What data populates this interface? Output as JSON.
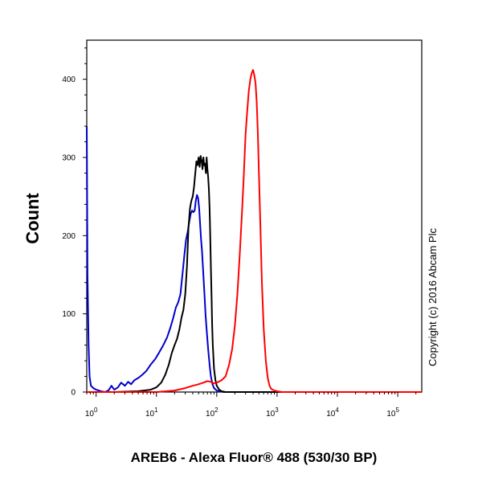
{
  "chart_data": {
    "type": "line",
    "title": "",
    "xlabel": "AREB6 - Alexa Fluor® 488 (530/30 BP)",
    "ylabel": "Count",
    "x_scale": "log",
    "xlim": [
      0.7,
      250000
    ],
    "ylim": [
      0,
      450
    ],
    "grid": false,
    "legend": "none",
    "annotation": "Copyright (c) 2016 Abcam Plc",
    "x_ticks": [
      {
        "value": 1,
        "base": "10",
        "exp": "0"
      },
      {
        "value": 10,
        "base": "10",
        "exp": "1"
      },
      {
        "value": 100,
        "base": "10",
        "exp": "2"
      },
      {
        "value": 1000,
        "base": "10",
        "exp": "3"
      },
      {
        "value": 10000,
        "base": "10",
        "exp": "4"
      },
      {
        "value": 100000,
        "base": "10",
        "exp": "5"
      }
    ],
    "y_ticks": [
      0,
      100,
      200,
      300,
      400
    ],
    "series": [
      {
        "color": "#0000cc",
        "x": [
          0.7,
          0.72,
          0.75,
          0.78,
          0.82,
          0.9,
          1.0,
          1.2,
          1.4,
          1.6,
          1.8,
          2.0,
          2.3,
          2.6,
          3.0,
          3.4,
          3.8,
          4.3,
          5.0,
          5.8,
          6.8,
          8.0,
          9.5,
          11,
          13,
          15,
          17,
          19,
          21,
          23,
          25,
          27,
          29,
          31,
          33,
          35,
          37,
          39,
          41,
          43,
          45,
          47,
          49,
          51,
          53,
          55,
          57,
          59,
          61,
          63,
          65,
          68,
          72,
          76,
          80,
          85,
          90,
          100,
          110,
          130,
          160,
          200,
          300,
          1000,
          10000,
          250000
        ],
        "y": [
          340,
          150,
          60,
          20,
          8,
          5,
          3,
          1,
          0,
          2,
          8,
          3,
          6,
          12,
          8,
          13,
          10,
          15,
          18,
          22,
          27,
          35,
          42,
          50,
          60,
          70,
          82,
          95,
          108,
          115,
          125,
          150,
          175,
          195,
          205,
          218,
          228,
          232,
          230,
          232,
          245,
          252,
          248,
          235,
          215,
          195,
          180,
          160,
          140,
          120,
          100,
          80,
          55,
          35,
          20,
          10,
          5,
          2,
          1,
          0,
          0,
          0,
          0,
          0,
          0,
          0
        ]
      },
      {
        "color": "#000000",
        "x": [
          0.7,
          1,
          2,
          5,
          8,
          10,
          12,
          14,
          16,
          18,
          20,
          22,
          24,
          26,
          28,
          30,
          32,
          34,
          36,
          38,
          40,
          42,
          44,
          46,
          48,
          50,
          52,
          54,
          56,
          58,
          60,
          62,
          64,
          66,
          68,
          70,
          72,
          74,
          76,
          78,
          80,
          82,
          84,
          86,
          90,
          95,
          100,
          110,
          120,
          140,
          160,
          200,
          300,
          1000,
          10000,
          250000
        ],
        "y": [
          0,
          0,
          0,
          1,
          3,
          6,
          12,
          22,
          35,
          50,
          60,
          68,
          80,
          95,
          105,
          125,
          160,
          210,
          235,
          245,
          250,
          262,
          280,
          295,
          290,
          300,
          288,
          302,
          296,
          285,
          300,
          290,
          292,
          280,
          300,
          285,
          275,
          260,
          235,
          200,
          160,
          120,
          85,
          60,
          30,
          15,
          8,
          3,
          1,
          0,
          0,
          0,
          0,
          0,
          0,
          0
        ]
      },
      {
        "color": "#ff0000",
        "x": [
          0.7,
          10,
          20,
          30,
          40,
          50,
          60,
          70,
          80,
          90,
          100,
          120,
          140,
          160,
          180,
          200,
          220,
          240,
          260,
          280,
          300,
          320,
          340,
          360,
          380,
          400,
          420,
          440,
          460,
          480,
          500,
          530,
          560,
          600,
          650,
          700,
          750,
          800,
          900,
          1000,
          1200,
          1500,
          2000,
          10000,
          250000
        ],
        "y": [
          0,
          0,
          2,
          5,
          8,
          10,
          12,
          14,
          13,
          11,
          12,
          15,
          20,
          35,
          55,
          85,
          125,
          175,
          225,
          275,
          330,
          360,
          385,
          400,
          408,
          412,
          405,
          395,
          370,
          330,
          280,
          210,
          140,
          80,
          40,
          18,
          8,
          4,
          2,
          1,
          0,
          0,
          0,
          0,
          0
        ]
      }
    ]
  }
}
